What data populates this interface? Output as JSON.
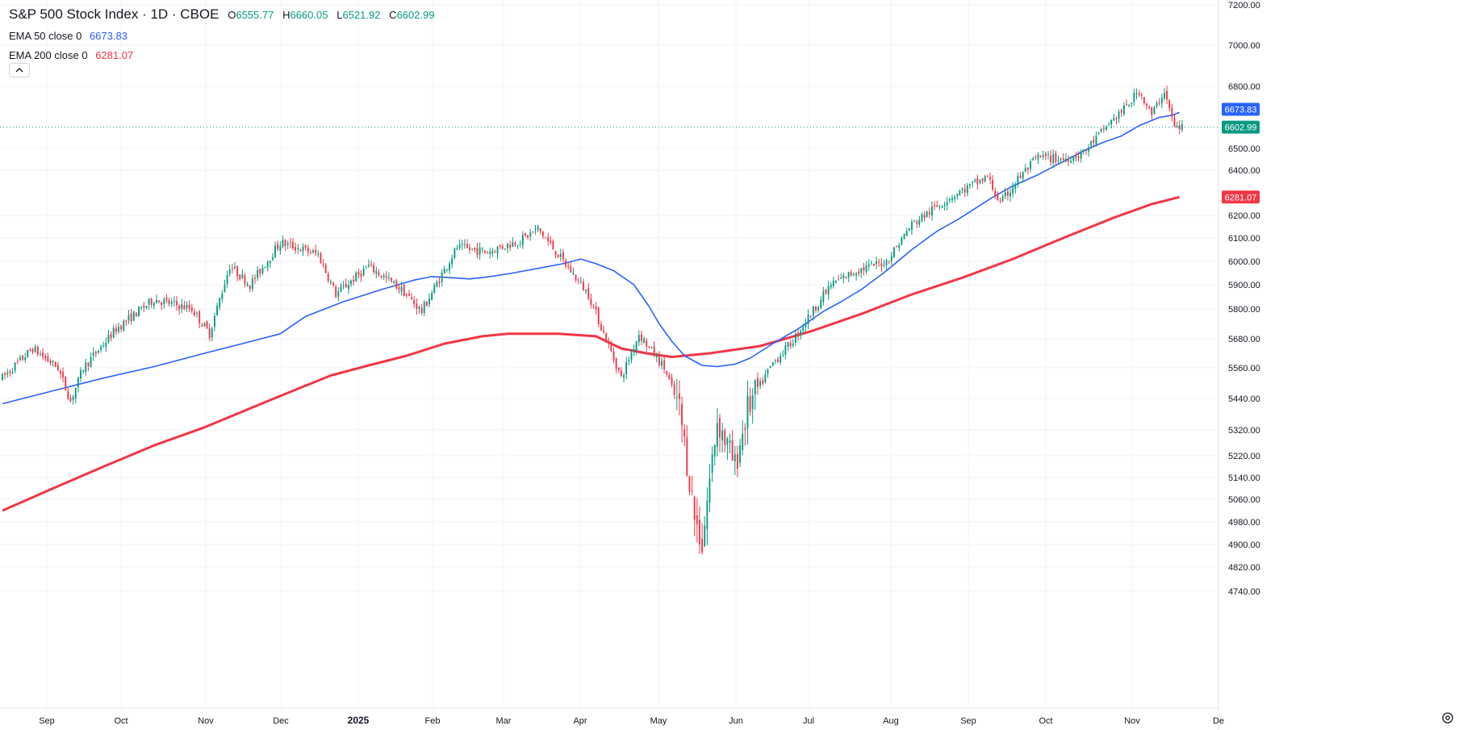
{
  "header": {
    "symbol": "S&P 500 Stock Index · 1D · CBOE",
    "open_label": "O",
    "open": "6555.77",
    "high_label": "H",
    "high": "6660.05",
    "low_label": "L",
    "low": "6521.92",
    "close_label": "C",
    "close": "6602.99",
    "ohlc_color": "#089981"
  },
  "indicators": [
    {
      "name": "EMA 50 close 0",
      "value": "6673.83",
      "color": "#2962ff"
    },
    {
      "name": "EMA 200 close 0",
      "value": "6281.07",
      "color": "#f23645"
    }
  ],
  "price_tags": {
    "ema50": {
      "value": "6673.83",
      "color": "#2962ff"
    },
    "last": {
      "value": "6602.99",
      "color": "#089981"
    },
    "ema200": {
      "value": "6281.07",
      "color": "#f23645"
    }
  },
  "controls": {
    "collapse_icon": "chevron-up-icon",
    "settings_icon": "gear-icon"
  },
  "chart_data": {
    "type": "candlestick",
    "title": "S&P 500 Stock Index · 1D · CBOE",
    "x_ticks": [
      "Sep",
      "Oct",
      "Nov",
      "Dec",
      "2025",
      "Feb",
      "Mar",
      "Apr",
      "May",
      "Jun",
      "Jul",
      "Aug",
      "Sep",
      "Oct",
      "Nov",
      "De"
    ],
    "y_ticks": [
      4740,
      4820,
      4900,
      4980,
      5060,
      5140,
      5220,
      5320,
      5440,
      5560,
      5680,
      5800,
      5900,
      6000,
      6100,
      6200,
      6400,
      6500,
      6800,
      7000,
      7200
    ],
    "y_tick_labels": [
      "4740.00",
      "4820.00",
      "4900.00",
      "4980.00",
      "5060.00",
      "5140.00",
      "5220.00",
      "5320.00",
      "5440.00",
      "5560.00",
      "5680.00",
      "5800.00",
      "5900.00",
      "6000.00",
      "6100.00",
      "6200.00",
      "6400.00",
      "6500.00",
      "6800.00",
      "7000.00",
      "7200.00"
    ],
    "y_scale": "log",
    "up_color": "#089981",
    "down_color": "#f23645",
    "grid": true,
    "series": [
      {
        "name": "EMA 50 close 0",
        "color": "#2962ff",
        "points": [
          [
            0,
            5420
          ],
          [
            20,
            5470
          ],
          [
            40,
            5520
          ],
          [
            60,
            5565
          ],
          [
            80,
            5620
          ],
          [
            95,
            5660
          ],
          [
            110,
            5700
          ],
          [
            120,
            5770
          ],
          [
            135,
            5830
          ],
          [
            150,
            5880
          ],
          [
            163,
            5920
          ],
          [
            170,
            5935
          ],
          [
            178,
            5930
          ],
          [
            185,
            5925
          ],
          [
            193,
            5935
          ],
          [
            202,
            5950
          ],
          [
            212,
            5970
          ],
          [
            222,
            5990
          ],
          [
            229,
            6010
          ],
          [
            235,
            5990
          ],
          [
            242,
            5960
          ],
          [
            250,
            5900
          ],
          [
            256,
            5810
          ],
          [
            260,
            5740
          ],
          [
            265,
            5670
          ],
          [
            270,
            5610
          ],
          [
            277,
            5570
          ],
          [
            283,
            5565
          ],
          [
            290,
            5575
          ],
          [
            296,
            5600
          ],
          [
            305,
            5660
          ],
          [
            315,
            5720
          ],
          [
            325,
            5790
          ],
          [
            332,
            5830
          ],
          [
            340,
            5880
          ],
          [
            350,
            5960
          ],
          [
            360,
            6050
          ],
          [
            370,
            6130
          ],
          [
            378,
            6180
          ],
          [
            385,
            6230
          ],
          [
            392,
            6280
          ],
          [
            400,
            6330
          ],
          [
            410,
            6380
          ],
          [
            420,
            6440
          ],
          [
            430,
            6500
          ],
          [
            436,
            6530
          ],
          [
            443,
            6560
          ],
          [
            450,
            6610
          ],
          [
            458,
            6650
          ],
          [
            463,
            6660
          ],
          [
            466,
            6673.83
          ]
        ]
      },
      {
        "name": "EMA 200 close 0",
        "color": "#f23645",
        "points": [
          [
            0,
            5020
          ],
          [
            20,
            5100
          ],
          [
            40,
            5180
          ],
          [
            60,
            5260
          ],
          [
            80,
            5330
          ],
          [
            100,
            5410
          ],
          [
            115,
            5470
          ],
          [
            130,
            5530
          ],
          [
            145,
            5570
          ],
          [
            160,
            5610
          ],
          [
            175,
            5660
          ],
          [
            190,
            5690
          ],
          [
            200,
            5700
          ],
          [
            220,
            5700
          ],
          [
            235,
            5690
          ],
          [
            245,
            5640
          ],
          [
            255,
            5620
          ],
          [
            265,
            5605
          ],
          [
            280,
            5620
          ],
          [
            300,
            5650
          ],
          [
            320,
            5710
          ],
          [
            340,
            5780
          ],
          [
            360,
            5860
          ],
          [
            380,
            5930
          ],
          [
            400,
            6010
          ],
          [
            420,
            6100
          ],
          [
            440,
            6190
          ],
          [
            455,
            6250
          ],
          [
            466,
            6281.07
          ]
        ]
      }
    ],
    "last_close": 6602.99
  }
}
